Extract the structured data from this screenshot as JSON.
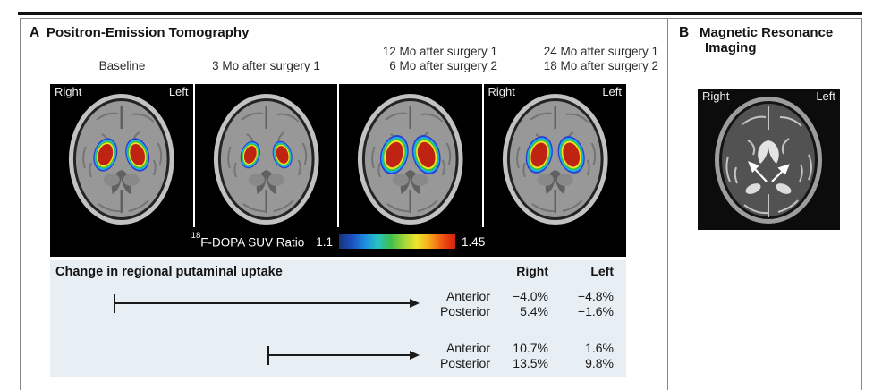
{
  "panel_a": {
    "label": "A",
    "title": "Positron-Emission Tomography",
    "scans": [
      {
        "line2": "Baseline",
        "corner_left": "Right",
        "corner_right": "Left"
      },
      {
        "line2": "3 Mo after surgery 1"
      },
      {
        "line1": "12 Mo after surgery 1",
        "line2": "6 Mo after surgery 2"
      },
      {
        "line1": "24 Mo after surgery 1",
        "line2": "18 Mo after surgery 2",
        "corner_left": "Right",
        "corner_right": "Left"
      }
    ],
    "colorbar": {
      "isotope": "18",
      "label": "F-DOPA SUV Ratio",
      "min": "1.1",
      "max": "1.45"
    },
    "table": {
      "title": "Change in regional putaminal uptake",
      "columns": [
        "Right",
        "Left"
      ],
      "groups": [
        {
          "rows": [
            {
              "region": "Anterior",
              "right": "−4.0%",
              "left": "−4.8%"
            },
            {
              "region": "Posterior",
              "right": "5.4%",
              "left": "−1.6%"
            }
          ]
        },
        {
          "rows": [
            {
              "region": "Anterior",
              "right": "10.7%",
              "left": "1.6%"
            },
            {
              "region": "Posterior",
              "right": "13.5%",
              "left": "9.8%"
            }
          ]
        }
      ]
    }
  },
  "panel_b": {
    "label": "B",
    "title_line1": "Magnetic Resonance",
    "title_line2": "Imaging",
    "mri": {
      "corner_left": "Right",
      "corner_right": "Left"
    }
  },
  "colors": {
    "table_bg": "#e7eef4",
    "pet_hot_core": "#bf2413",
    "colorbar_gradient": [
      "#16347c",
      "#1b4fc0",
      "#1e8ce0",
      "#27c2c4",
      "#3fbf4b",
      "#9ed43a",
      "#efe42c",
      "#f5a81c",
      "#ee5312",
      "#d31f0f"
    ]
  }
}
